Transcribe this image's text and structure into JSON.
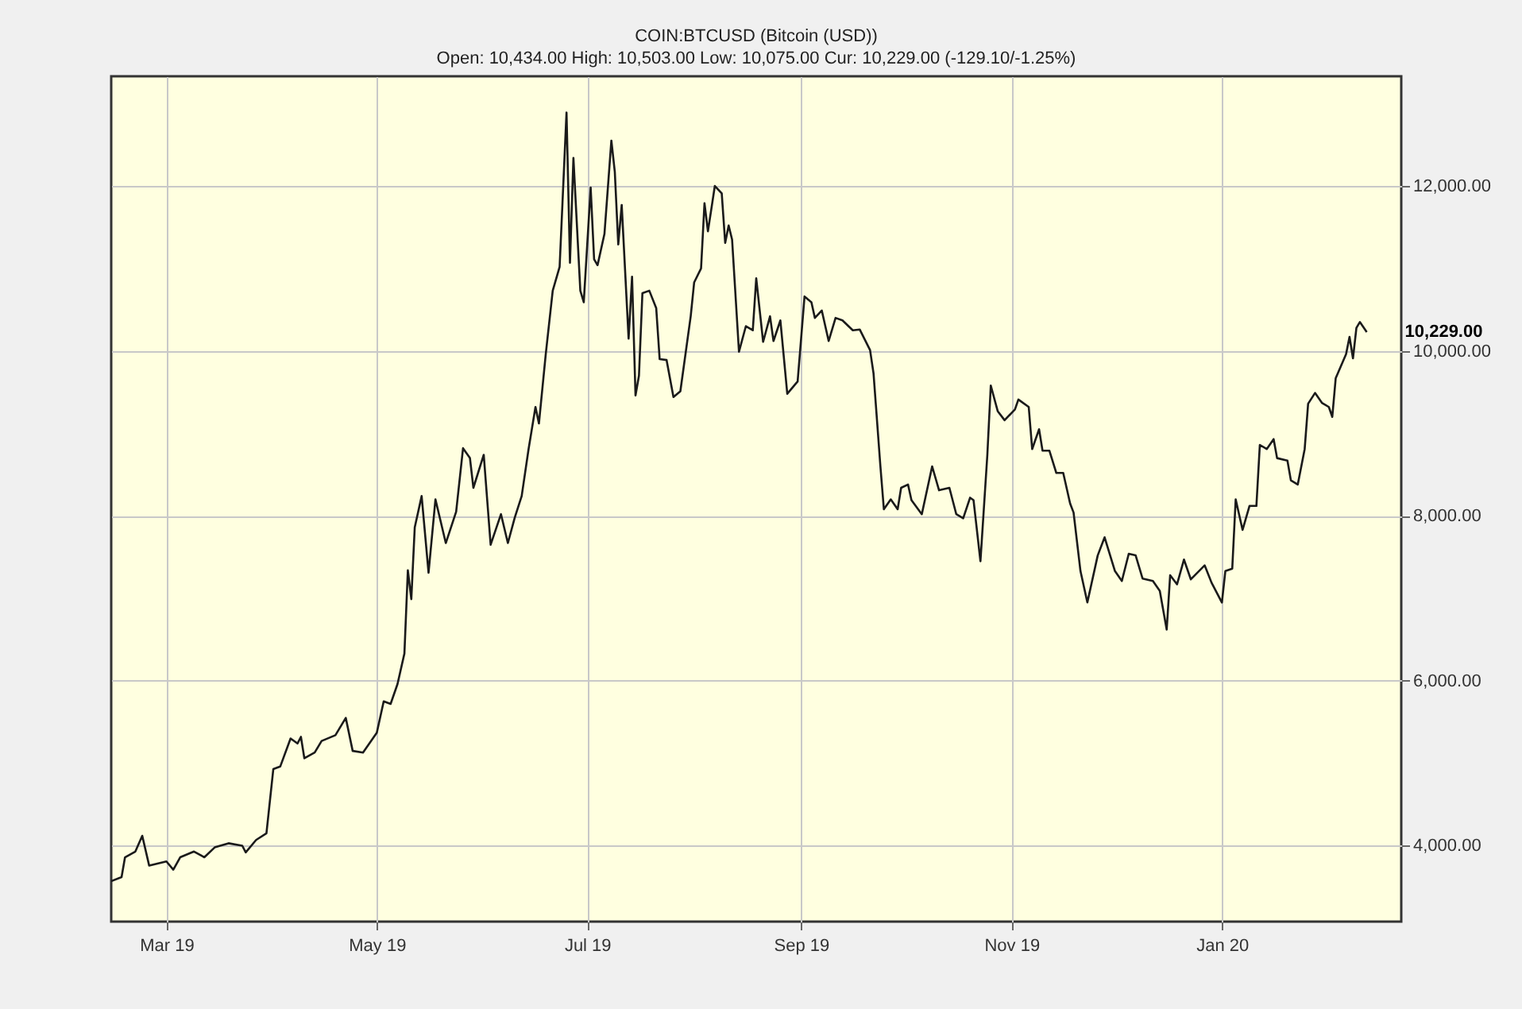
{
  "chart_data": {
    "type": "line",
    "title": "COIN:BTCUSD (Bitcoin (USD))",
    "subtitle": "Open: 10,434.00 High: 10,503.00 Low: 10,075.00 Cur: 10,229.00 (-129.10/-1.25%)",
    "x": [
      "2019-02-13",
      "2019-02-16",
      "2019-02-17",
      "2019-02-20",
      "2019-02-22",
      "2019-02-24",
      "2019-03-01",
      "2019-03-03",
      "2019-03-05",
      "2019-03-09",
      "2019-03-12",
      "2019-03-15",
      "2019-03-19",
      "2019-03-23",
      "2019-03-24",
      "2019-03-27",
      "2019-03-30",
      "2019-04-01",
      "2019-04-03",
      "2019-04-06",
      "2019-04-08",
      "2019-04-09",
      "2019-04-10",
      "2019-04-13",
      "2019-04-15",
      "2019-04-19",
      "2019-04-22",
      "2019-04-24",
      "2019-04-27",
      "2019-05-01",
      "2019-05-03",
      "2019-05-05",
      "2019-05-07",
      "2019-05-09",
      "2019-05-10",
      "2019-05-11",
      "2019-05-12",
      "2019-05-14",
      "2019-05-16",
      "2019-05-18",
      "2019-05-21",
      "2019-05-24",
      "2019-05-26",
      "2019-05-28",
      "2019-05-29",
      "2019-06-01",
      "2019-06-03",
      "2019-06-06",
      "2019-06-08",
      "2019-06-10",
      "2019-06-12",
      "2019-06-14",
      "2019-06-16",
      "2019-06-17",
      "2019-06-19",
      "2019-06-21",
      "2019-06-23",
      "2019-06-25",
      "2019-06-26",
      "2019-06-27",
      "2019-06-29",
      "2019-06-30",
      "2019-07-02",
      "2019-07-03",
      "2019-07-04",
      "2019-07-06",
      "2019-07-08",
      "2019-07-09",
      "2019-07-10",
      "2019-07-11",
      "2019-07-13",
      "2019-07-14",
      "2019-07-15",
      "2019-07-16",
      "2019-07-17",
      "2019-07-19",
      "2019-07-21",
      "2019-07-22",
      "2019-07-24",
      "2019-07-26",
      "2019-07-28",
      "2019-07-31",
      "2019-08-01",
      "2019-08-03",
      "2019-08-04",
      "2019-08-05",
      "2019-08-07",
      "2019-08-09",
      "2019-08-10",
      "2019-08-11",
      "2019-08-12",
      "2019-08-14",
      "2019-08-16",
      "2019-08-18",
      "2019-08-19",
      "2019-08-21",
      "2019-08-23",
      "2019-08-24",
      "2019-08-26",
      "2019-08-28",
      "2019-08-31",
      "2019-09-02",
      "2019-09-04",
      "2019-09-05",
      "2019-09-07",
      "2019-09-09",
      "2019-09-11",
      "2019-09-13",
      "2019-09-16",
      "2019-09-18",
      "2019-09-21",
      "2019-09-22",
      "2019-09-24",
      "2019-09-25",
      "2019-09-27",
      "2019-09-29",
      "2019-09-30",
      "2019-10-02",
      "2019-10-03",
      "2019-10-06",
      "2019-10-09",
      "2019-10-11",
      "2019-10-14",
      "2019-10-16",
      "2019-10-18",
      "2019-10-20",
      "2019-10-21",
      "2019-10-23",
      "2019-10-25",
      "2019-10-26",
      "2019-10-28",
      "2019-10-30",
      "2019-11-02",
      "2019-11-03",
      "2019-11-06",
      "2019-11-07",
      "2019-11-09",
      "2019-11-10",
      "2019-11-12",
      "2019-11-14",
      "2019-11-16",
      "2019-11-18",
      "2019-11-19",
      "2019-11-21",
      "2019-11-23",
      "2019-11-26",
      "2019-11-28",
      "2019-12-01",
      "2019-12-03",
      "2019-12-05",
      "2019-12-07",
      "2019-12-09",
      "2019-12-12",
      "2019-12-14",
      "2019-12-16",
      "2019-12-17",
      "2019-12-19",
      "2019-12-21",
      "2019-12-23",
      "2019-12-27",
      "2019-12-29",
      "2020-01-01",
      "2020-01-02",
      "2020-01-04",
      "2020-01-05",
      "2020-01-07",
      "2020-01-09",
      "2020-01-11",
      "2020-01-12",
      "2020-01-14",
      "2020-01-16",
      "2020-01-17",
      "2020-01-20",
      "2020-01-21",
      "2020-01-23",
      "2020-01-25",
      "2020-01-26",
      "2020-01-28",
      "2020-01-30",
      "2020-02-01",
      "2020-02-02",
      "2020-02-03",
      "2020-02-06",
      "2020-02-07",
      "2020-02-08",
      "2020-02-09",
      "2020-02-10",
      "2020-02-12"
    ],
    "series": [
      {
        "color": "#1a1a1a",
        "values": [
          3570,
          3620,
          3860,
          3930,
          4120,
          3760,
          3810,
          3710,
          3860,
          3930,
          3860,
          3980,
          4030,
          4000,
          3920,
          4070,
          4150,
          4930,
          4960,
          5300,
          5240,
          5320,
          5060,
          5130,
          5270,
          5340,
          5550,
          5150,
          5130,
          5370,
          5750,
          5720,
          5960,
          6330,
          7340,
          6990,
          7860,
          8240,
          7310,
          8200,
          7670,
          8050,
          8820,
          8700,
          8340,
          8740,
          7650,
          8020,
          7670,
          7980,
          8240,
          8810,
          9320,
          9120,
          9970,
          10730,
          11020,
          12890,
          11070,
          12340,
          10730,
          10590,
          11980,
          11110,
          11040,
          11420,
          12550,
          12170,
          11290,
          11770,
          10150,
          10900,
          9460,
          9700,
          10700,
          10730,
          10520,
          9900,
          9890,
          9440,
          9510,
          10420,
          10830,
          11000,
          11790,
          11450,
          12000,
          11910,
          11310,
          11520,
          11350,
          9990,
          10300,
          10250,
          10880,
          10110,
          10420,
          10120,
          10370,
          9480,
          9630,
          10660,
          10590,
          10400,
          10490,
          10120,
          10400,
          10370,
          10250,
          10260,
          10010,
          9730,
          8600,
          8080,
          8200,
          8080,
          8340,
          8380,
          8190,
          8020,
          8600,
          8310,
          8340,
          8020,
          7970,
          8220,
          8190,
          7450,
          8740,
          9580,
          9270,
          9160,
          9290,
          9410,
          9320,
          8810,
          9050,
          8790,
          8790,
          8520,
          8520,
          8150,
          8040,
          7330,
          6950,
          7520,
          7740,
          7330,
          7210,
          7540,
          7520,
          7240,
          7210,
          7090,
          6620,
          7280,
          7170,
          7470,
          7230,
          7400,
          7190,
          6950,
          7330,
          7360,
          8200,
          7830,
          8120,
          8120,
          8860,
          8810,
          8930,
          8700,
          8670,
          8430,
          8380,
          8810,
          9360,
          9490,
          9370,
          9320,
          9200,
          9670,
          9960,
          10170,
          9910,
          10280,
          10350,
          10229
        ]
      }
    ],
    "xlim": [
      "2019-02-13",
      "2020-02-22"
    ],
    "xticks": [
      {
        "value": "2019-03-01",
        "label": "Mar 19"
      },
      {
        "value": "2019-05-01",
        "label": "May 19"
      },
      {
        "value": "2019-07-01",
        "label": "Jul 19"
      },
      {
        "value": "2019-09-01",
        "label": "Sep 19"
      },
      {
        "value": "2019-11-01",
        "label": "Nov 19"
      },
      {
        "value": "2020-01-01",
        "label": "Jan 20"
      }
    ],
    "ylim": [
      3080,
      13330
    ],
    "yticks": [
      {
        "value": 4000,
        "label": "4,000.00"
      },
      {
        "value": 6000,
        "label": "6,000.00"
      },
      {
        "value": 8000,
        "label": "8,000.00"
      },
      {
        "value": 10000,
        "label": "10,000.00"
      },
      {
        "value": 12000,
        "label": "12,000.00"
      }
    ],
    "annotations": [
      {
        "text": "10,229.00",
        "x": "2020-02-12",
        "y": 10229
      }
    ],
    "grid": true,
    "marker": "none",
    "line_style": "solid"
  }
}
